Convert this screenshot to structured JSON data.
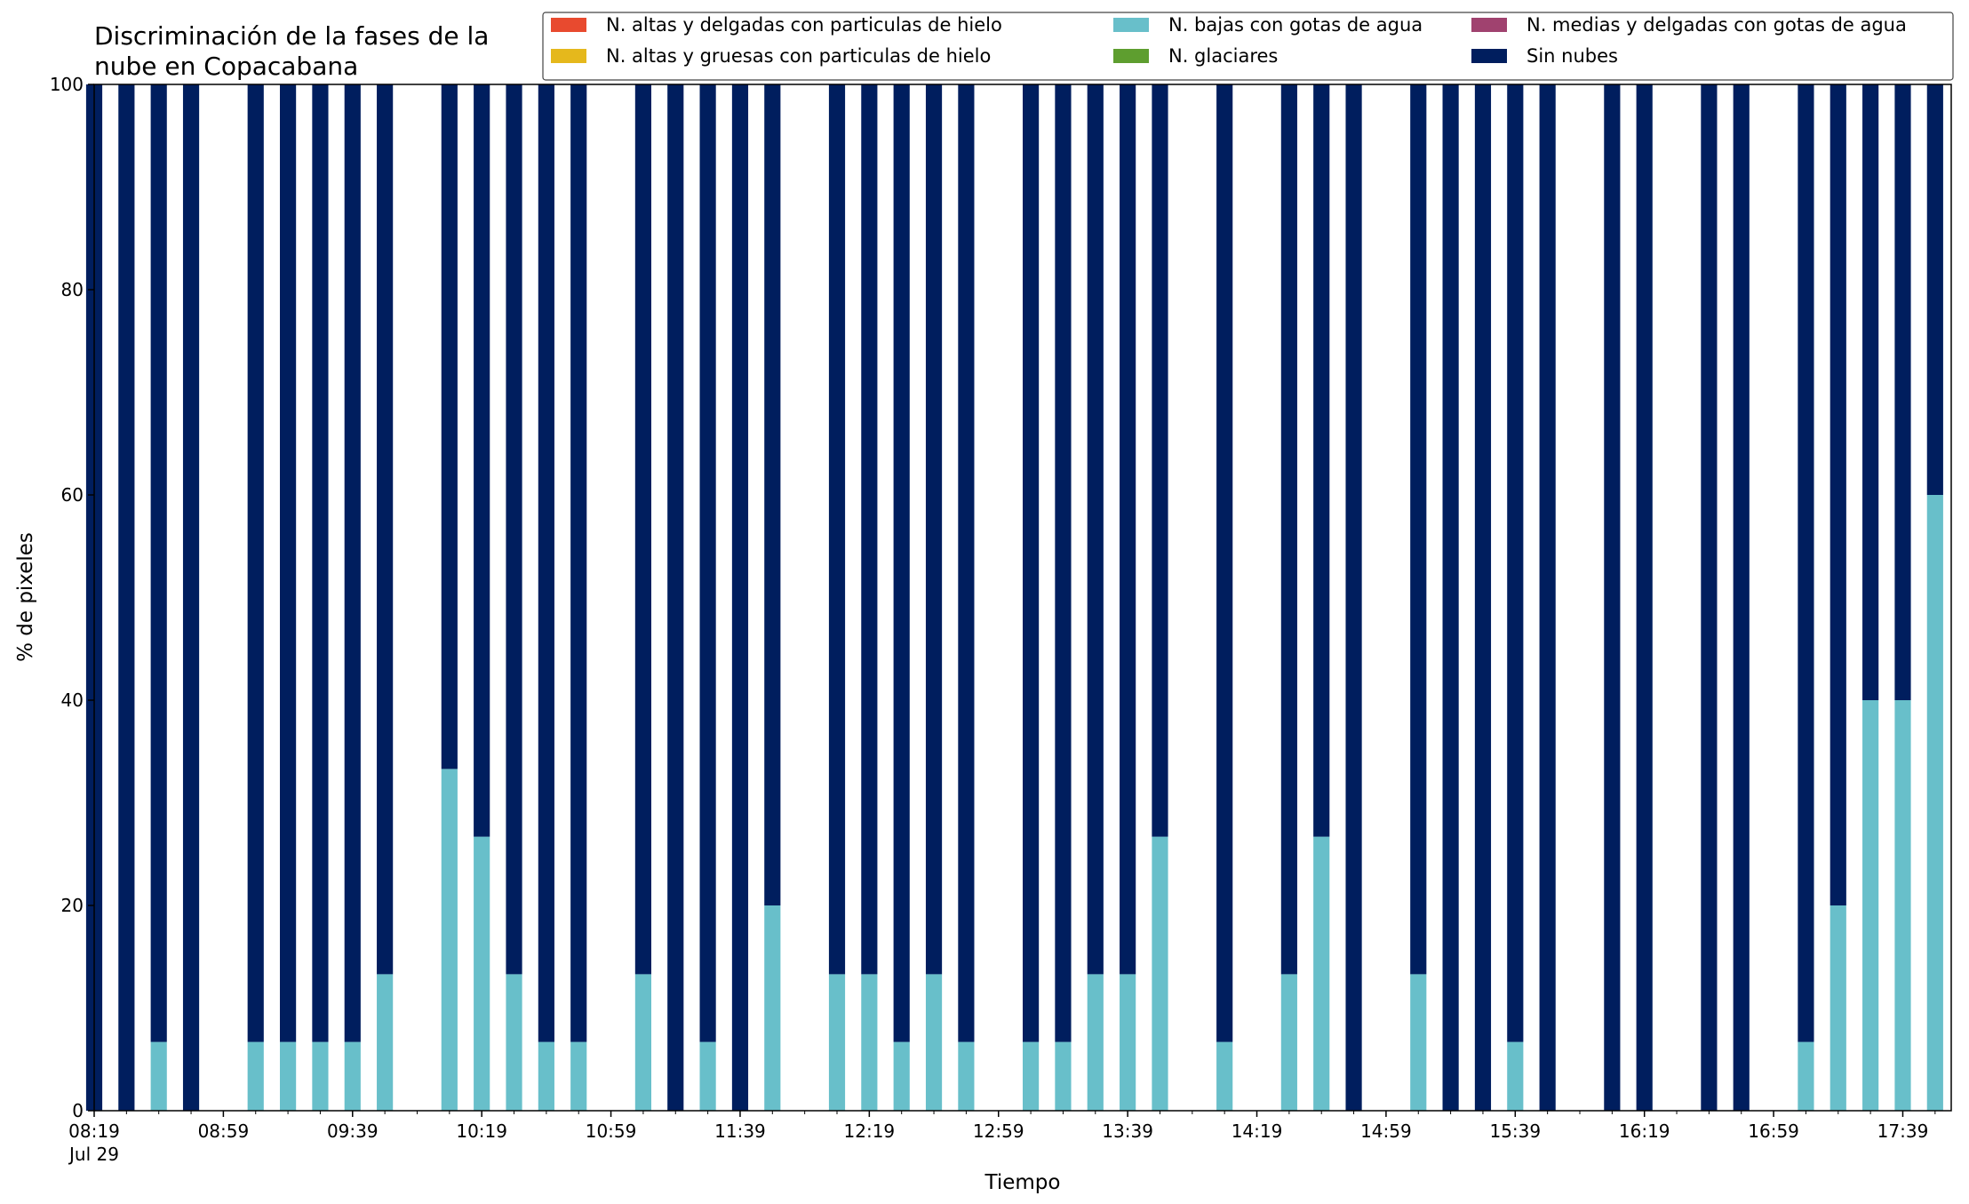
{
  "chart_data": {
    "type": "bar",
    "stacked": true,
    "title": "Discriminación de la fases de la\nnube en Copacabana",
    "xlabel": "Tiempo",
    "ylabel": "% de pixeles",
    "ylim": [
      0,
      100
    ],
    "yticks": [
      0,
      20,
      40,
      60,
      80,
      100
    ],
    "grid": false,
    "legend_placement": "top-right",
    "x_start": "08:19",
    "x_end": "17:54",
    "x_interval_minutes": 10,
    "xtick_labels": [
      "08:19",
      "08:59",
      "09:39",
      "10:19",
      "10:59",
      "11:39",
      "12:19",
      "12:59",
      "13:39",
      "14:19",
      "14:59",
      "15:39",
      "16:19",
      "16:59",
      "17:39"
    ],
    "xtick_date_label": "Jul 29",
    "x": [
      "08:19",
      "08:29",
      "08:39",
      "08:49",
      "08:59",
      "09:09",
      "09:19",
      "09:29",
      "09:39",
      "09:49",
      "09:59",
      "10:09",
      "10:19",
      "10:29",
      "10:39",
      "10:49",
      "10:59",
      "11:09",
      "11:19",
      "11:29",
      "11:39",
      "11:49",
      "11:59",
      "12:09",
      "12:19",
      "12:29",
      "12:39",
      "12:49",
      "12:59",
      "13:09",
      "13:19",
      "13:29",
      "13:39",
      "13:49",
      "13:59",
      "14:09",
      "14:19",
      "14:29",
      "14:39",
      "14:49",
      "14:59",
      "15:09",
      "15:19",
      "15:29",
      "15:39",
      "15:49",
      "15:59",
      "16:09",
      "16:19",
      "16:29",
      "16:39",
      "16:49",
      "16:59",
      "17:09",
      "17:19",
      "17:29",
      "17:39",
      "17:49"
    ],
    "series": [
      {
        "name": "N. altas y delgadas con particulas de hielo",
        "color": "#e84a2f",
        "values": [
          0,
          0,
          0,
          0,
          0,
          0,
          0,
          0,
          0,
          0,
          0,
          0,
          0,
          0,
          0,
          0,
          0,
          0,
          0,
          0,
          0,
          0,
          0,
          0,
          0,
          0,
          0,
          0,
          0,
          0,
          0,
          0,
          0,
          0,
          0,
          0,
          0,
          0,
          0,
          0,
          0,
          0,
          0,
          0,
          0,
          0,
          0,
          0,
          0,
          0,
          0,
          0,
          0,
          0,
          0,
          0,
          0,
          0
        ]
      },
      {
        "name": "N. altas y gruesas con particulas de hielo",
        "color": "#e5b81c",
        "values": [
          0,
          0,
          0,
          0,
          0,
          0,
          0,
          0,
          0,
          0,
          0,
          0,
          0,
          0,
          0,
          0,
          0,
          0,
          0,
          0,
          0,
          0,
          0,
          0,
          0,
          0,
          0,
          0,
          0,
          0,
          0,
          0,
          0,
          0,
          0,
          0,
          0,
          0,
          0,
          0,
          0,
          0,
          0,
          0,
          0,
          0,
          0,
          0,
          0,
          0,
          0,
          0,
          0,
          0,
          0,
          0,
          0,
          0
        ]
      },
      {
        "name": "N. bajas con gotas de agua",
        "color": "#68bfca",
        "values": [
          0,
          0,
          6.7,
          0,
          null,
          6.7,
          6.7,
          6.7,
          6.7,
          13.3,
          null,
          33.3,
          26.7,
          13.3,
          6.7,
          6.7,
          null,
          13.3,
          0,
          6.7,
          0,
          20,
          null,
          13.3,
          13.3,
          6.7,
          13.3,
          6.7,
          null,
          6.7,
          6.7,
          13.3,
          13.3,
          26.7,
          null,
          6.7,
          null,
          13.3,
          26.7,
          0,
          null,
          13.3,
          0,
          0,
          6.7,
          0,
          null,
          0,
          0,
          null,
          0,
          0,
          null,
          6.7,
          20,
          40,
          40,
          60
        ]
      },
      {
        "name": "N. glaciares",
        "color": "#5e9e2f",
        "values": [
          0,
          0,
          0,
          0,
          0,
          0,
          0,
          0,
          0,
          0,
          0,
          0,
          0,
          0,
          0,
          0,
          0,
          0,
          0,
          0,
          0,
          0,
          0,
          0,
          0,
          0,
          0,
          0,
          0,
          0,
          0,
          0,
          0,
          0,
          0,
          0,
          0,
          0,
          0,
          0,
          0,
          0,
          0,
          0,
          0,
          0,
          0,
          0,
          0,
          0,
          0,
          0,
          0,
          0,
          0,
          0,
          0,
          0
        ]
      },
      {
        "name": "N. medias y delgadas con gotas de agua",
        "color": "#a0426f",
        "values": [
          0,
          0,
          0,
          0,
          0,
          0,
          0,
          0,
          0,
          0,
          0,
          0,
          0,
          0,
          0,
          0,
          0,
          0,
          0,
          0,
          0,
          0,
          0,
          0,
          0,
          0,
          0,
          0,
          0,
          0,
          0,
          0,
          0,
          0,
          0,
          0,
          0,
          0,
          0,
          0,
          0,
          0,
          0,
          0,
          0,
          0,
          0,
          0,
          0,
          0,
          0,
          0,
          0,
          0,
          0,
          0,
          0,
          0
        ]
      },
      {
        "name": "Sin nubes",
        "color": "#001e5e",
        "values": [
          100,
          100,
          93.3,
          100,
          null,
          93.3,
          93.3,
          93.3,
          93.3,
          86.7,
          null,
          66.7,
          73.3,
          86.7,
          93.3,
          93.3,
          null,
          86.7,
          100,
          93.3,
          100,
          80,
          null,
          86.7,
          86.7,
          93.3,
          86.7,
          93.3,
          null,
          93.3,
          93.3,
          86.7,
          86.7,
          73.3,
          null,
          93.3,
          null,
          86.7,
          73.3,
          100,
          null,
          86.7,
          100,
          100,
          93.3,
          100,
          null,
          100,
          100,
          null,
          100,
          100,
          null,
          93.3,
          80,
          60,
          60,
          40
        ]
      }
    ]
  }
}
